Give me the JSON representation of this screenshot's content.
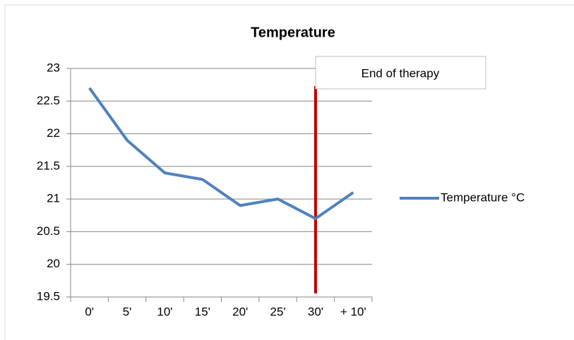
{
  "chart_data": {
    "type": "line",
    "title": "Temperature",
    "categories": [
      "0'",
      "5'",
      "10'",
      "15'",
      "20'",
      "25'",
      "30'",
      "+ 10'"
    ],
    "series": [
      {
        "name": "Temperature °C",
        "color": "#4f81bd",
        "values": [
          22.7,
          21.9,
          21.4,
          21.3,
          20.9,
          21.0,
          20.7,
          21.1
        ]
      }
    ],
    "ylim": [
      19.5,
      23
    ],
    "yticks": [
      19.5,
      20,
      20.5,
      21,
      21.5,
      22,
      22.5,
      23
    ],
    "grid": true,
    "legend": "right",
    "annotations": [
      {
        "text": "End of therapy",
        "x": "30'",
        "color": "#c00000"
      }
    ]
  }
}
